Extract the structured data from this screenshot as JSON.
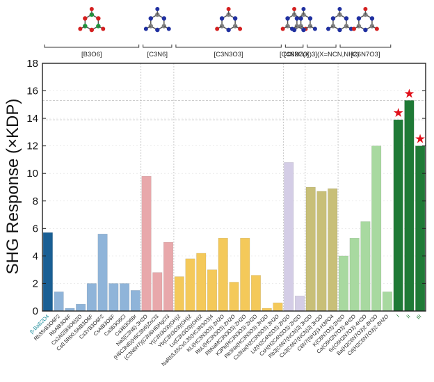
{
  "chart_data": {
    "type": "bar",
    "title": "",
    "ylabel": "SHG Response (×KDP)",
    "xlabel": "",
    "ylim": [
      0,
      18
    ],
    "yticks": [
      0,
      2,
      4,
      6,
      8,
      10,
      12,
      14,
      16,
      18
    ],
    "dashed_reference_lines": [
      15.3,
      13.9
    ],
    "groups": [
      {
        "label": "[B3O6]",
        "motif": "B3O6 ring",
        "atom_colors": [
          "#1a9a3a",
          "#d42020"
        ]
      },
      {
        "label": "[C3N6]",
        "motif": "C3N6 ring",
        "atom_colors": [
          "#808080",
          "#2030a0"
        ]
      },
      {
        "label": "[C3N3O3]",
        "motif": "C3N3O3 ring",
        "atom_colors": [
          "#808080",
          "#2030a0",
          "#d42020"
        ]
      },
      {
        "label": "[C4N2O3]",
        "motif": "C4N2O3 ring",
        "atom_colors": [
          "#808080",
          "#2030a0",
          "#d42020"
        ]
      },
      {
        "label": "[C6N7(X)3](X=NCN,NH2)",
        "motif": "C6N7 heptazine",
        "atom_colors": [
          "#808080",
          "#2030a0"
        ]
      },
      {
        "label": "[C6N7O3]",
        "motif": "C6N7O3 heptazine",
        "atom_colors": [
          "#808080",
          "#2030a0",
          "#d42020"
        ]
      }
    ],
    "categories": [
      "β-BaB2O4",
      "Rb3SrB3O6F2",
      "RbAlB3O6F",
      "Cs2Al2(B3O6)2O",
      "Cs0.5Rb0.5AlB3O6F",
      "Cs3YB3O6F2",
      "CsAlB3O6F",
      "Ca3B3O6Cl",
      "Ca3B3O6Br",
      "Na3(C3N6)·3H2O",
      "(H6C3N6)(H6C3N6)ZnCl3",
      "(C3N6H7)(C3N6H6)HgCl3",
      "Y(C3N3O3)(OH)2",
      "Yb(C3N3O3)(OH)2",
      "Lu(C3N3O3)(OH)2",
      "NaRb3.65Cs0.35(HC3N3O3)4",
      "KLi(HC3N3O3)·2H2O",
      "RbLi(HC3N3O3)·2H2O",
      "RbNaMC3N3O3)·2H2O",
      "K3Pb(HC3N3O3)·2H2O",
      "Rb3Na(HC3N3O3)·3H2O",
      "Cs3Na(H2C3N3O3)·3H2O",
      "Li2(H2C4N2O3)·2H2O",
      "CsH(H2C4N2O3)·2H2O",
      "Rb3[C6N7(NCN)3]·3H2O",
      "Cs3[C6N7(NCN)3]·3H2O",
      "C6N7(NH2)3·H3PO4",
      "K(C6N7O3)·2H2O",
      "Ca(C6H2N7O3)·4H2O",
      "Sr(C6H2N7O3)·4H2O",
      "Ba(H2C6N7O3)2·8H2O",
      "Cd(H2C6N7O3)2·8H2O",
      "I",
      "II",
      "III"
    ],
    "values": [
      5.7,
      1.4,
      0.2,
      0.5,
      2.0,
      5.6,
      2.0,
      2.0,
      1.5,
      9.8,
      2.8,
      5.0,
      2.5,
      3.8,
      4.2,
      3.0,
      5.3,
      2.1,
      5.3,
      2.6,
      0.2,
      0.6,
      10.8,
      1.1,
      9.0,
      8.7,
      8.9,
      4.0,
      5.3,
      6.5,
      12.0,
      1.4,
      13.9,
      15.3,
      12.0
    ],
    "bar_group": [
      0,
      0,
      0,
      0,
      0,
      0,
      0,
      0,
      0,
      1,
      1,
      1,
      2,
      2,
      2,
      2,
      2,
      2,
      2,
      2,
      2,
      2,
      3,
      3,
      4,
      4,
      4,
      5,
      5,
      5,
      5,
      5,
      6,
      6,
      6
    ],
    "colors": [
      "#1a5f94",
      "#8fb4d9",
      "#e8a8ab",
      "#f4c95a",
      "#d4cde6",
      "#c8bf78",
      "#a8d9a0",
      "#1f7a36"
    ],
    "highlight_indices": [
      32,
      33,
      34
    ],
    "star_marker": "★",
    "star_color": "#e0101a"
  }
}
